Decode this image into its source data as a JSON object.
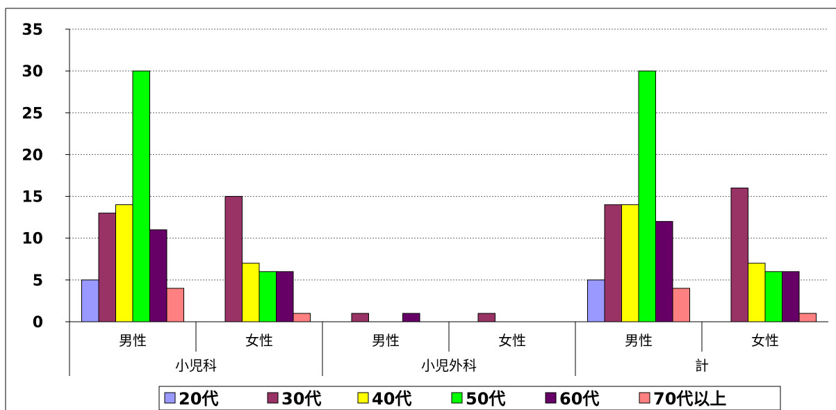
{
  "chart_data": {
    "type": "bar",
    "title": "",
    "xlabel": "",
    "ylabel": "",
    "ylim": [
      0,
      35
    ],
    "yticks": [
      0,
      5,
      10,
      15,
      20,
      25,
      30,
      35
    ],
    "grid": true,
    "legend_position": "bottom",
    "groups": [
      {
        "label": "小児科",
        "categories": [
          "男性",
          "女性"
        ]
      },
      {
        "label": "小児外科",
        "categories": [
          "男性",
          "女性"
        ]
      },
      {
        "label": "計",
        "categories": [
          "男性",
          "女性"
        ]
      }
    ],
    "categories": [
      "男性",
      "女性",
      "男性",
      "女性",
      "男性",
      "女性"
    ],
    "series": [
      {
        "name": "20代",
        "color": "#9999FF",
        "values": [
          5,
          0,
          0,
          0,
          5,
          0
        ]
      },
      {
        "name": "30代",
        "color": "#993366",
        "values": [
          13,
          15,
          1,
          1,
          14,
          16
        ]
      },
      {
        "name": "40代",
        "color": "#FFFF00",
        "values": [
          14,
          7,
          0,
          0,
          14,
          7
        ]
      },
      {
        "name": "50代",
        "color": "#00FF00",
        "values": [
          30,
          6,
          0,
          0,
          30,
          6
        ]
      },
      {
        "name": "60代",
        "color": "#660066",
        "values": [
          11,
          6,
          1,
          0,
          12,
          6
        ]
      },
      {
        "name": "70代以上",
        "color": "#FF8080",
        "values": [
          4,
          1,
          0,
          0,
          4,
          1
        ]
      }
    ]
  }
}
